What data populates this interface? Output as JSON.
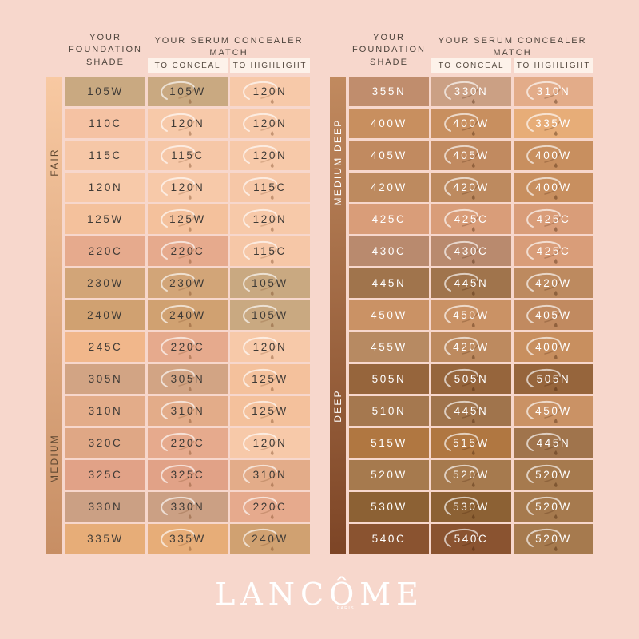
{
  "page": {
    "background": "#f7d7cc"
  },
  "brand": {
    "logo_text": "LANCÔME",
    "logo_sub": "PARIS",
    "logo_color": "#ffffff"
  },
  "headers": {
    "foundation": "YOUR FOUNDATION SHADE",
    "match": "YOUR SERUM CONCEALER MATCH",
    "to_conceal": "TO CONCEAL",
    "to_highlight": "TO HIGHLIGHT",
    "subheader_bg": "#fdf2ea"
  },
  "palette": {
    "105W": "#c9a981",
    "110C": "#f5c2a3",
    "115C": "#f6c7a7",
    "120N": "#f7c9a9",
    "125W": "#f4c19c",
    "220C": "#e6aa8d",
    "230W": "#d2a578",
    "240W": "#d0a171",
    "245C": "#f1b78b",
    "305N": "#d2a484",
    "310N": "#e3ac89",
    "320C": "#dfa785",
    "325C": "#e1a287",
    "330N": "#cba084",
    "335W": "#e7ad78",
    "355N": "#c08d6d",
    "400W": "#c88f5f",
    "405W": "#c18a60",
    "420W": "#bd8a5f",
    "425C": "#d99d79",
    "430C": "#b98a6e",
    "445N": "#a0744c",
    "450W": "#ca9265",
    "455W": "#b78a62",
    "505N": "#96653c",
    "510N": "#a5784f",
    "515W": "#b07741",
    "520W": "#a67a4e",
    "530W": "#8c6134",
    "540C": "#8a5330"
  },
  "chart_data": [
    {
      "type": "table",
      "columns": [
        "YOUR FOUNDATION SHADE",
        "TO CONCEAL",
        "TO HIGHLIGHT"
      ],
      "side_labels": [
        {
          "label": "FAIR",
          "center": "18%"
        },
        {
          "label": "MEDIUM",
          "center": "80%"
        }
      ],
      "bar_gradient": [
        "#f8c9a2",
        "#c78e64"
      ],
      "bar_text_color": "#5f4832",
      "text_color": "#3e3a36",
      "smear_light": "rgba(255,255,255,0.65)",
      "smear_dark": "rgba(120,70,35,0.40)",
      "rows": [
        {
          "foundation": "105W",
          "to_conceal": "105W",
          "to_highlight": "120N"
        },
        {
          "foundation": "110C",
          "to_conceal": "120N",
          "to_highlight": "120N"
        },
        {
          "foundation": "115C",
          "to_conceal": "115C",
          "to_highlight": "120N"
        },
        {
          "foundation": "120N",
          "to_conceal": "120N",
          "to_highlight": "115C"
        },
        {
          "foundation": "125W",
          "to_conceal": "125W",
          "to_highlight": "120N"
        },
        {
          "foundation": "220C",
          "to_conceal": "220C",
          "to_highlight": "115C"
        },
        {
          "foundation": "230W",
          "to_conceal": "230W",
          "to_highlight": "105W"
        },
        {
          "foundation": "240W",
          "to_conceal": "240W",
          "to_highlight": "105W"
        },
        {
          "foundation": "245C",
          "to_conceal": "220C",
          "to_highlight": "120N"
        },
        {
          "foundation": "305N",
          "to_conceal": "305N",
          "to_highlight": "125W"
        },
        {
          "foundation": "310N",
          "to_conceal": "310N",
          "to_highlight": "125W"
        },
        {
          "foundation": "320C",
          "to_conceal": "220C",
          "to_highlight": "120N"
        },
        {
          "foundation": "325C",
          "to_conceal": "325C",
          "to_highlight": "310N"
        },
        {
          "foundation": "330N",
          "to_conceal": "330N",
          "to_highlight": "220C"
        },
        {
          "foundation": "335W",
          "to_conceal": "335W",
          "to_highlight": "240W"
        }
      ]
    },
    {
      "type": "table",
      "columns": [
        "YOUR FOUNDATION SHADE",
        "TO CONCEAL",
        "TO HIGHLIGHT"
      ],
      "side_labels": [
        {
          "label": "MEDIUM DEEP",
          "center": "18%"
        },
        {
          "label": "DEEP",
          "center": "69%"
        }
      ],
      "bar_gradient": [
        "#c18a5f",
        "#7d4526"
      ],
      "bar_text_color": "#ffffff",
      "text_color": "#ffffff",
      "smear_light": "rgba(255,255,255,0.65)",
      "smear_dark": "rgba(70,35,10,0.40)",
      "rows": [
        {
          "foundation": "355N",
          "to_conceal": "330N",
          "to_highlight": "310N"
        },
        {
          "foundation": "400W",
          "to_conceal": "400W",
          "to_highlight": "335W"
        },
        {
          "foundation": "405W",
          "to_conceal": "405W",
          "to_highlight": "400W"
        },
        {
          "foundation": "420W",
          "to_conceal": "420W",
          "to_highlight": "400W"
        },
        {
          "foundation": "425C",
          "to_conceal": "425C",
          "to_highlight": "425C"
        },
        {
          "foundation": "430C",
          "to_conceal": "430C",
          "to_highlight": "425C"
        },
        {
          "foundation": "445N",
          "to_conceal": "445N",
          "to_highlight": "420W"
        },
        {
          "foundation": "450W",
          "to_conceal": "450W",
          "to_highlight": "405W"
        },
        {
          "foundation": "455W",
          "to_conceal": "420W",
          "to_highlight": "400W"
        },
        {
          "foundation": "505N",
          "to_conceal": "505N",
          "to_highlight": "505N"
        },
        {
          "foundation": "510N",
          "to_conceal": "445N",
          "to_highlight": "450W"
        },
        {
          "foundation": "515W",
          "to_conceal": "515W",
          "to_highlight": "445N"
        },
        {
          "foundation": "520W",
          "to_conceal": "520W",
          "to_highlight": "520W"
        },
        {
          "foundation": "530W",
          "to_conceal": "530W",
          "to_highlight": "520W"
        },
        {
          "foundation": "540C",
          "to_conceal": "540C",
          "to_highlight": "520W"
        }
      ]
    }
  ]
}
